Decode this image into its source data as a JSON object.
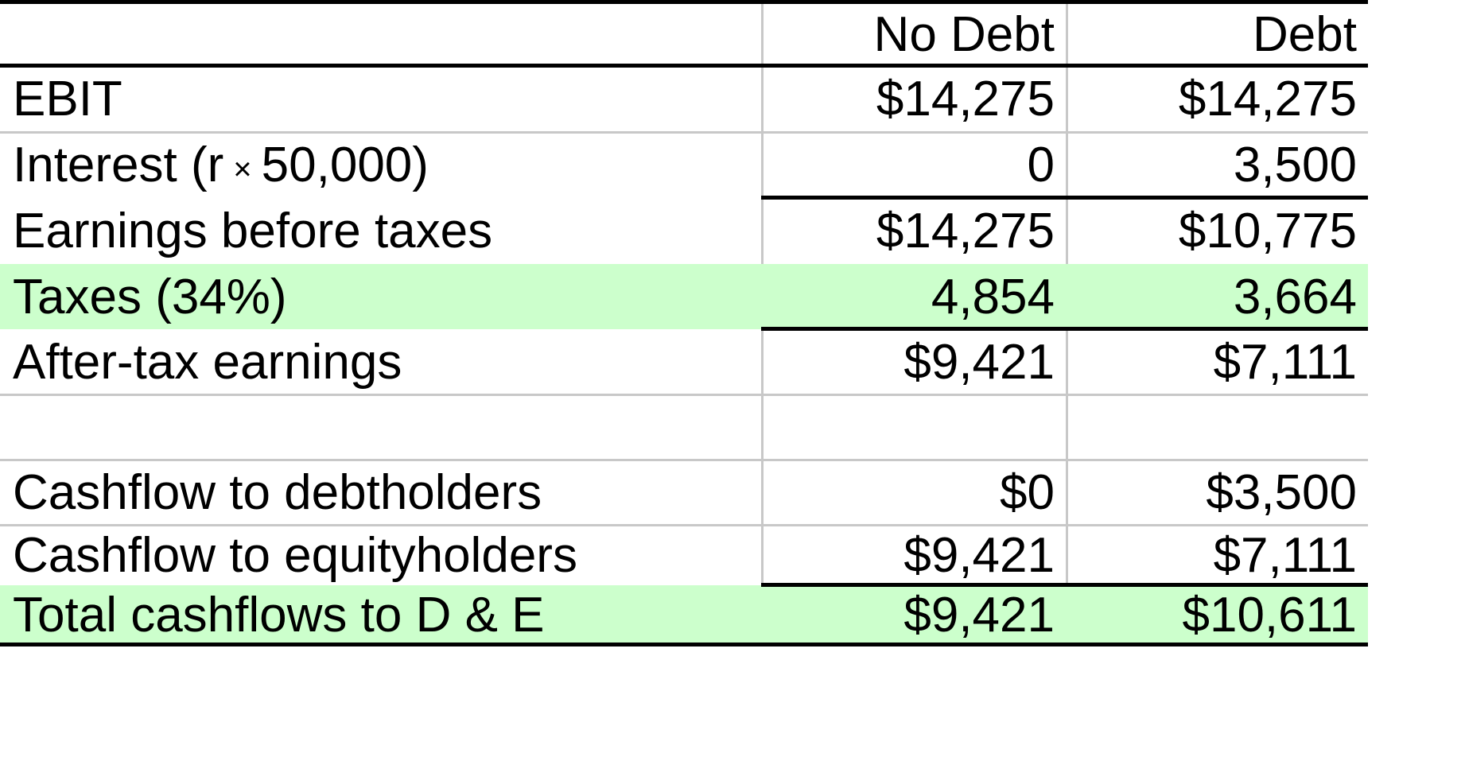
{
  "table": {
    "headers": {
      "label": "",
      "no_debt": "No Debt",
      "debt": "Debt"
    },
    "rows": [
      {
        "label": "EBIT",
        "no_debt": "$14,275",
        "debt": "$14,275"
      },
      {
        "label_prefix": "Interest (r",
        "times": "×",
        "label_suffix": "50,000)",
        "no_debt": "0",
        "debt": "3,500"
      },
      {
        "label": "Earnings before taxes",
        "no_debt": "$14,275",
        "debt": "$10,775"
      },
      {
        "label": "Taxes (34%)",
        "no_debt": "4,854",
        "debt": "3,664"
      },
      {
        "label": "After-tax earnings",
        "no_debt": "$9,421",
        "debt": "$7,111"
      },
      {
        "label": "",
        "no_debt": "",
        "debt": ""
      },
      {
        "label": "Cashflow to debtholders",
        "no_debt": "$0",
        "debt": "$3,500"
      },
      {
        "label": "Cashflow to equityholders",
        "no_debt": "$9,421",
        "debt": "$7,111"
      },
      {
        "label": "Total cashflows to D & E",
        "no_debt": "$9,421",
        "debt": "$10,611"
      }
    ]
  },
  "colors": {
    "highlight": "#ccffcc",
    "gridline": "#c8c8c8",
    "rule": "#000000"
  }
}
